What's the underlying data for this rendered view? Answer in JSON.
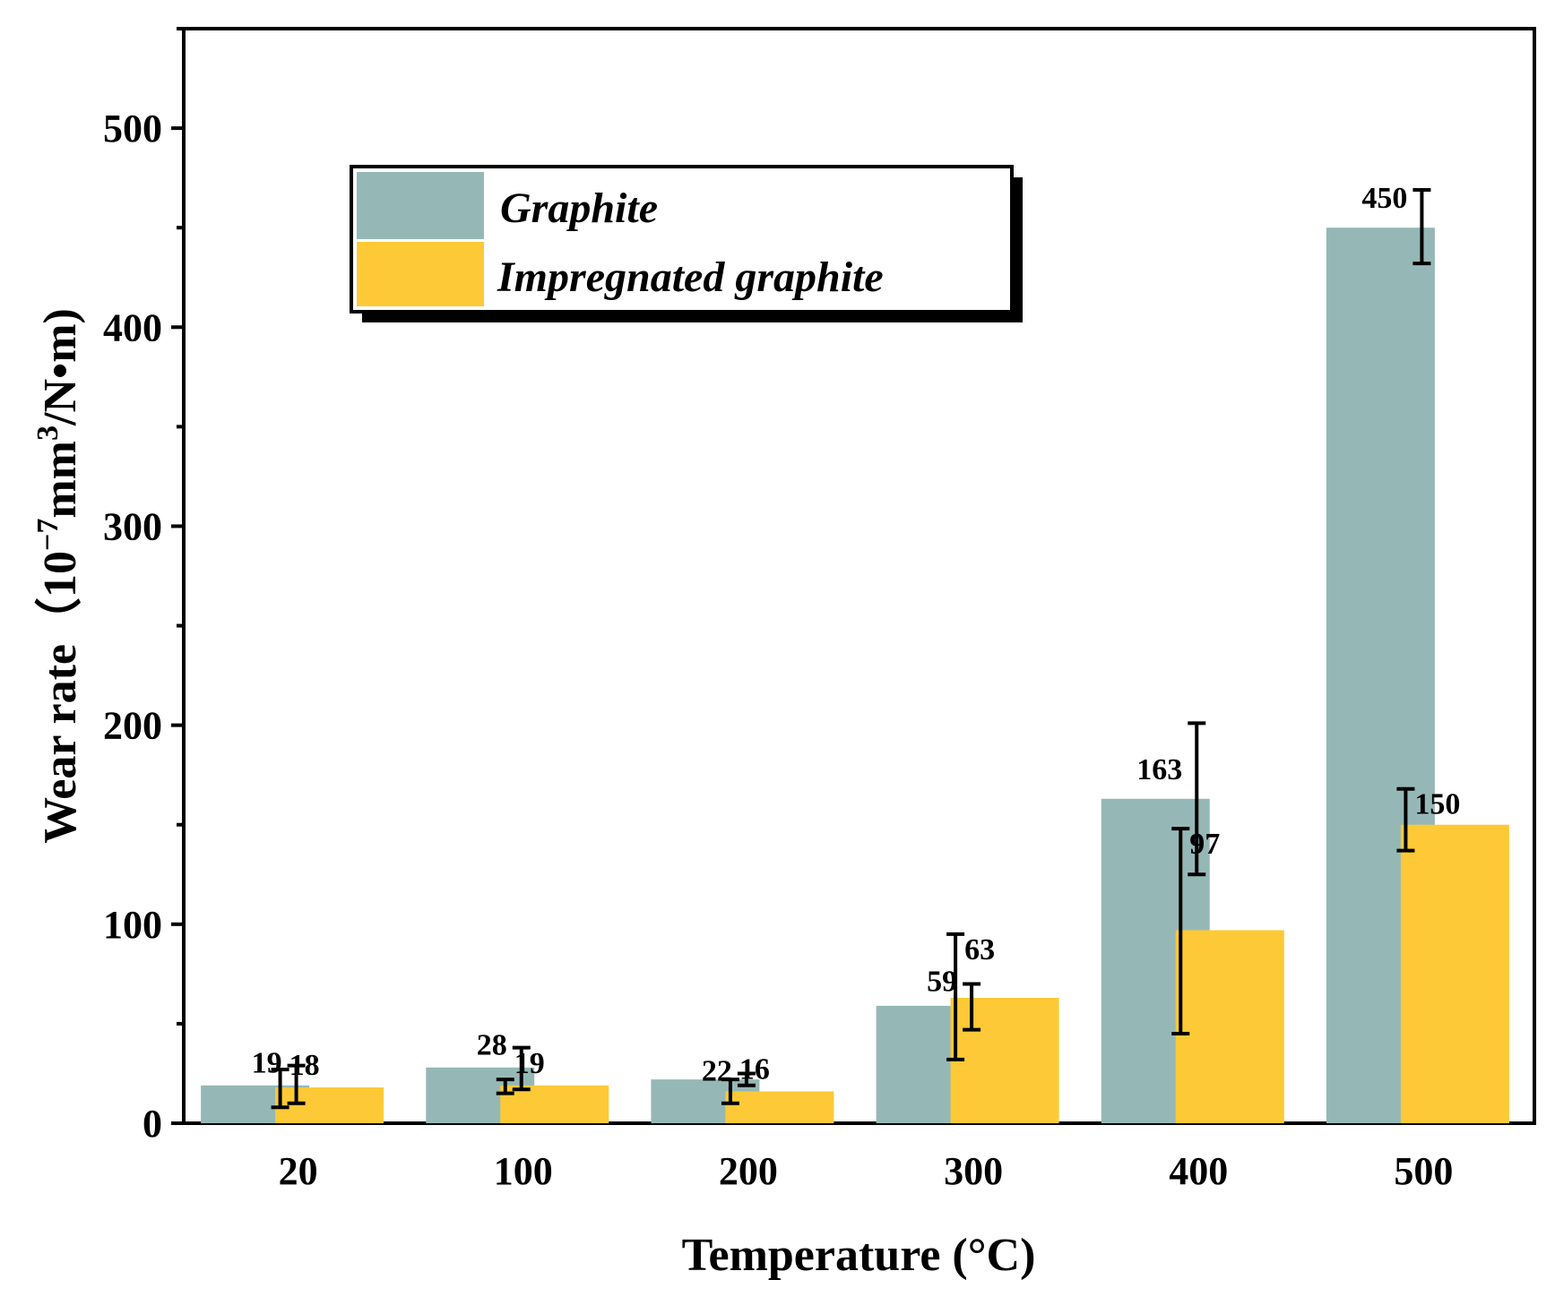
{
  "chart_data": {
    "type": "bar",
    "title": "",
    "xlabel": "Temperature (°C)",
    "ylabel_main": "Wear rate（10",
    "ylabel_sup1": "−7",
    "ylabel_mid": "mm",
    "ylabel_sup2": "3",
    "ylabel_end": "/N•m)",
    "categories": [
      "20",
      "100",
      "200",
      "300",
      "400",
      "500"
    ],
    "ylim": [
      0,
      550
    ],
    "yticks": [
      0,
      100,
      200,
      300,
      400,
      500
    ],
    "series": [
      {
        "name": "Graphite",
        "color": "#95b8b6",
        "values": [
          19,
          28,
          22,
          59,
          163,
          450
        ],
        "labels": [
          "19",
          "28",
          "22",
          "59",
          "163",
          "450"
        ],
        "error_low": [
          10,
          17,
          19,
          47,
          125,
          432
        ],
        "error_high": [
          29,
          38,
          25,
          70,
          201,
          469
        ]
      },
      {
        "name": "Impregnated graphite",
        "color": "#fdc936",
        "values": [
          18,
          19,
          16,
          63,
          97,
          150
        ],
        "labels": [
          "18",
          "19",
          "16",
          "63",
          "97",
          "150"
        ],
        "error_low": [
          8,
          15,
          10,
          32,
          45,
          137
        ],
        "error_high": [
          27,
          22,
          22,
          95,
          148,
          168
        ]
      }
    ],
    "legend": {
      "position": "top-left"
    }
  }
}
